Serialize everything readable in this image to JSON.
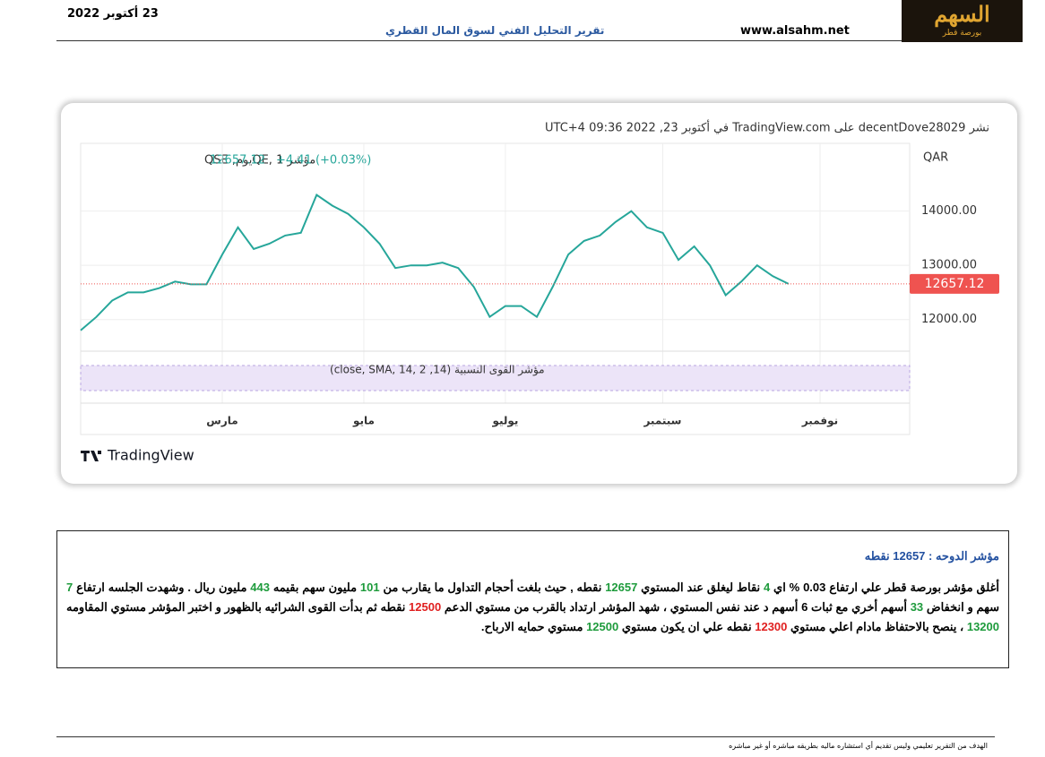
{
  "header": {
    "date": "23 أكتوبر 2022",
    "title": "تقرير التحليل الفني لسوق المال القطري",
    "site": "www.alsahm.net",
    "logo": "السهم",
    "logo_sub": "بورصة قطر"
  },
  "chart_data": {
    "type": "line",
    "published": "نشر decentDove28029 على TradingView.com في أكتوبر 23, 2022 09:36 UTC+4",
    "symbol": "مؤشر QE, 1يوم, QSE",
    "last": "12657.12",
    "change": "+4.41 (+0.03%)",
    "currency": "QAR",
    "price_tag": "12657.12",
    "indicator": "مؤشر القوى النسبية (14, close, SMA, 14, 2)",
    "brand": "TradingView",
    "categories": [
      null,
      null,
      null,
      null,
      null,
      null,
      null,
      null,
      null,
      "مارس",
      null,
      null,
      null,
      null,
      null,
      null,
      null,
      null,
      "مايو",
      null,
      null,
      null,
      null,
      null,
      null,
      null,
      null,
      "يوليو",
      null,
      null,
      null,
      null,
      null,
      null,
      null,
      null,
      null,
      "سبتمبر",
      null,
      null,
      null,
      null,
      null,
      null,
      null,
      null,
      null,
      "نوفمبر"
    ],
    "values": [
      11800,
      12050,
      12350,
      12500,
      12500,
      12580,
      12700,
      12650,
      12650,
      13200,
      13700,
      13300,
      13400,
      13550,
      13600,
      14300,
      14100,
      13950,
      13700,
      13400,
      12950,
      13000,
      13000,
      13050,
      12950,
      12600,
      12050,
      12250,
      12250,
      12050,
      12600,
      13200,
      13450,
      13550,
      13800,
      14000,
      13700,
      13600,
      13100,
      13350,
      13000,
      12450,
      12700,
      13000,
      12800,
      12657.12,
      null,
      null
    ],
    "color": "#26a69a",
    "ylim": [
      11450,
      15250
    ],
    "yticks": [
      {
        "value": 12000,
        "label": "12000.00"
      },
      {
        "value": 13000,
        "label": "13000.00"
      },
      {
        "value": 14000,
        "label": "14000.00"
      }
    ],
    "grid": true
  },
  "report": {
    "heading": "مؤشر الدوحه : 12657 نقطه",
    "runs": [
      {
        "text": "أغلق مؤشر بورصة قطر علي ارتفاع "
      },
      {
        "text": "0.03 %"
      },
      {
        "text": " اي "
      },
      {
        "text": "4",
        "color": "#1e9b3c"
      },
      {
        "text": " نقاط ليغلق عند المستوي "
      },
      {
        "text": "12657",
        "color": "#1e9b3c"
      },
      {
        "text": " نقطه , حيث بلغت أحجام التداول ما يقارب من "
      },
      {
        "text": "101",
        "color": "#1e9b3c"
      },
      {
        "text": " مليون سهم بقيمه "
      },
      {
        "text": "443",
        "color": "#1e9b3c"
      },
      {
        "text": " مليون ريال . وشهدت الجلسه ارتفاع "
      },
      {
        "text": "7",
        "color": "#1e9b3c"
      },
      {
        "text": " سهم و انخفاض "
      },
      {
        "text": "33",
        "color": "#1e9b3c"
      },
      {
        "text": " أسهم أخري مع ثبات "
      },
      {
        "text": "6"
      },
      {
        "text": " أسهم د عند نفس المستوي ، شهد المؤشر ارتداد بالقرب من مستوي الدعم "
      },
      {
        "text": "12500",
        "color": "#e02020"
      },
      {
        "text": " نقطه ثم بدأت القوى الشرائيه بالظهور و اختبر المؤشر مستوي المقاومه "
      },
      {
        "text": "13200",
        "color": "#1e9b3c"
      },
      {
        "text": " ، ينصح بالاحتفاظ مادام اعلي مستوي "
      },
      {
        "text": "12300",
        "color": "#e02020"
      },
      {
        "text": " نقطه علي ان يكون مستوي "
      },
      {
        "text": "12500",
        "color": "#1e9b3c"
      },
      {
        "text": " مستوي حمايه الارباح."
      }
    ]
  },
  "footer": {
    "disclaimer": "الهدف من التقرير تعليمي وليس تقديم أي استشاره ماليه بطريقه مباشره أو غير مباشره"
  }
}
